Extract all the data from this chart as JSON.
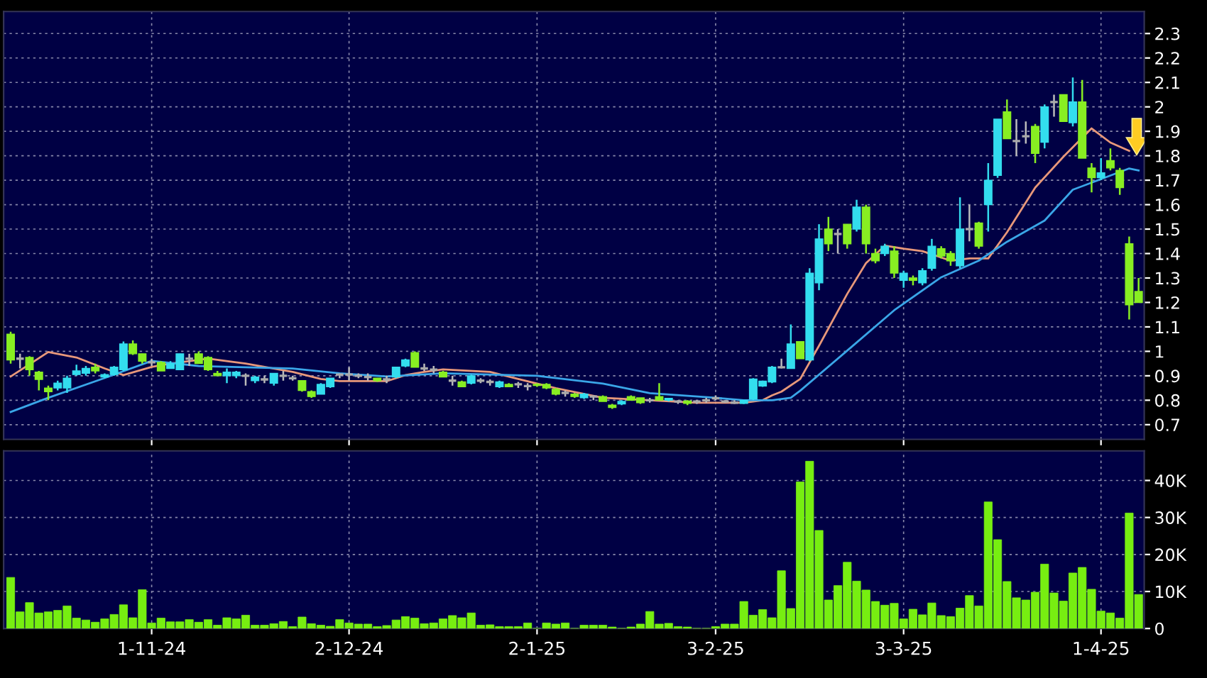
{
  "chart_data": [
    {
      "type": "candlestick",
      "categories": [
        null,
        null,
        null,
        null,
        null,
        null,
        null,
        null,
        null,
        null,
        null,
        null,
        null,
        null,
        null,
        null,
        null,
        null,
        null,
        null,
        null,
        null,
        null,
        null,
        null,
        null,
        null,
        null,
        null,
        null,
        null,
        null,
        null,
        null,
        null,
        null,
        null,
        null,
        null,
        null,
        null,
        null,
        null,
        null,
        null,
        null,
        null,
        null,
        null,
        null,
        null,
        null,
        null,
        null,
        null,
        null,
        null,
        null,
        null,
        null,
        null,
        null,
        null,
        null,
        null,
        null,
        null,
        null,
        null,
        null,
        null,
        null,
        null,
        null,
        null,
        null,
        null,
        null,
        null,
        null,
        null,
        null,
        null,
        null,
        null,
        null,
        null,
        null,
        null,
        null,
        null,
        null,
        null,
        null,
        null,
        null,
        null,
        null,
        null,
        null,
        null,
        null,
        null,
        null,
        null,
        null,
        null,
        null,
        null,
        null,
        null,
        null,
        null,
        null,
        null,
        null,
        null,
        null,
        null,
        null,
        null
      ],
      "ohlc": [
        [
          1.07,
          1.08,
          0.95,
          0.965
        ],
        [
          0.97,
          0.99,
          0.93,
          0.97
        ],
        [
          0.975,
          0.98,
          0.9,
          0.925
        ],
        [
          0.915,
          0.92,
          0.84,
          0.885
        ],
        [
          0.85,
          0.86,
          0.8,
          0.835
        ],
        [
          0.85,
          0.88,
          0.84,
          0.87
        ],
        [
          0.85,
          0.9,
          0.83,
          0.89
        ],
        [
          0.905,
          0.945,
          0.9,
          0.92
        ],
        [
          0.91,
          0.94,
          0.9,
          0.93
        ],
        [
          0.935,
          0.95,
          0.91,
          0.92
        ],
        [
          0.895,
          0.91,
          0.89,
          0.905
        ],
        [
          0.905,
          0.94,
          0.9,
          0.935
        ],
        [
          0.925,
          1.04,
          0.92,
          1.03
        ],
        [
          1.03,
          1.045,
          0.985,
          0.99
        ],
        [
          0.99,
          0.99,
          0.95,
          0.96
        ],
        [
          0.955,
          0.97,
          0.94,
          0.955
        ],
        [
          0.955,
          0.96,
          0.92,
          0.92
        ],
        [
          0.93,
          0.96,
          0.93,
          0.95
        ],
        [
          0.925,
          0.99,
          0.925,
          0.99
        ],
        [
          0.97,
          0.99,
          0.94,
          0.97
        ],
        [
          0.99,
          1.0,
          0.95,
          0.95
        ],
        [
          0.975,
          0.98,
          0.92,
          0.925
        ],
        [
          0.91,
          0.92,
          0.9,
          0.9
        ],
        [
          0.9,
          0.93,
          0.87,
          0.915
        ],
        [
          0.9,
          0.92,
          0.89,
          0.915
        ],
        [
          0.9,
          0.91,
          0.86,
          0.9
        ],
        [
          0.88,
          0.9,
          0.87,
          0.895
        ],
        [
          0.885,
          0.9,
          0.87,
          0.885
        ],
        [
          0.87,
          0.91,
          0.86,
          0.91
        ],
        [
          0.9,
          0.92,
          0.88,
          0.9
        ],
        [
          0.89,
          0.9,
          0.88,
          0.89
        ],
        [
          0.88,
          0.88,
          0.835,
          0.84
        ],
        [
          0.835,
          0.84,
          0.81,
          0.815
        ],
        [
          0.825,
          0.87,
          0.825,
          0.865
        ],
        [
          0.855,
          0.89,
          0.85,
          0.89
        ],
        [
          0.905,
          0.91,
          0.89,
          0.905
        ],
        [
          0.905,
          0.935,
          0.88,
          0.905
        ],
        [
          0.9,
          0.91,
          0.89,
          0.9
        ],
        [
          0.895,
          0.91,
          0.88,
          0.895
        ],
        [
          0.89,
          0.89,
          0.875,
          0.88
        ],
        [
          0.885,
          0.9,
          0.87,
          0.885
        ],
        [
          0.895,
          0.935,
          0.89,
          0.935
        ],
        [
          0.94,
          0.97,
          0.935,
          0.965
        ],
        [
          0.995,
          1.0,
          0.935,
          0.935
        ],
        [
          0.93,
          0.95,
          0.92,
          0.93
        ],
        [
          0.925,
          0.94,
          0.91,
          0.925
        ],
        [
          0.915,
          0.92,
          0.895,
          0.895
        ],
        [
          0.88,
          0.9,
          0.86,
          0.88
        ],
        [
          0.875,
          0.88,
          0.855,
          0.855
        ],
        [
          0.87,
          0.905,
          0.865,
          0.9
        ],
        [
          0.88,
          0.89,
          0.87,
          0.88
        ],
        [
          0.875,
          0.885,
          0.86,
          0.875
        ],
        [
          0.855,
          0.88,
          0.85,
          0.875
        ],
        [
          0.865,
          0.87,
          0.855,
          0.855
        ],
        [
          0.865,
          0.875,
          0.85,
          0.865
        ],
        [
          0.858,
          0.87,
          0.84,
          0.858
        ],
        [
          0.865,
          0.87,
          0.855,
          0.86
        ],
        [
          0.865,
          0.87,
          0.845,
          0.85
        ],
        [
          0.845,
          0.85,
          0.82,
          0.825
        ],
        [
          0.83,
          0.84,
          0.815,
          0.83
        ],
        [
          0.825,
          0.83,
          0.81,
          0.815
        ],
        [
          0.81,
          0.83,
          0.805,
          0.825
        ],
        [
          0.815,
          0.82,
          0.8,
          0.815
        ],
        [
          0.815,
          0.82,
          0.795,
          0.795
        ],
        [
          0.78,
          0.785,
          0.765,
          0.77
        ],
        [
          0.785,
          0.8,
          0.78,
          0.795
        ],
        [
          0.815,
          0.82,
          0.8,
          0.8
        ],
        [
          0.81,
          0.81,
          0.785,
          0.79
        ],
        [
          0.8,
          0.81,
          0.79,
          0.8
        ],
        [
          0.815,
          0.87,
          0.8,
          0.8
        ],
        [
          0.8,
          0.81,
          0.795,
          0.808
        ],
        [
          0.795,
          0.8,
          0.785,
          0.795
        ],
        [
          0.797,
          0.8,
          0.78,
          0.787
        ],
        [
          0.795,
          0.8,
          0.785,
          0.795
        ],
        [
          0.8,
          0.81,
          0.79,
          0.8
        ],
        [
          0.808,
          0.82,
          0.8,
          0.808
        ],
        [
          0.795,
          0.8,
          0.79,
          0.795
        ],
        [
          0.79,
          0.8,
          0.785,
          0.79
        ],
        [
          0.787,
          0.8,
          0.785,
          0.8
        ],
        [
          0.805,
          0.89,
          0.8,
          0.887
        ],
        [
          0.858,
          0.88,
          0.855,
          0.878
        ],
        [
          0.875,
          0.94,
          0.87,
          0.935
        ],
        [
          0.935,
          0.97,
          0.93,
          0.935
        ],
        [
          0.93,
          1.11,
          0.93,
          1.03
        ],
        [
          1.04,
          1.04,
          0.97,
          0.97
        ],
        [
          0.965,
          1.34,
          0.96,
          1.32
        ],
        [
          1.28,
          1.52,
          1.25,
          1.46
        ],
        [
          1.5,
          1.55,
          1.41,
          1.44
        ],
        [
          1.48,
          1.5,
          1.4,
          1.48
        ],
        [
          1.52,
          1.52,
          1.42,
          1.44
        ],
        [
          1.5,
          1.62,
          1.49,
          1.59
        ],
        [
          1.59,
          1.6,
          1.4,
          1.44
        ],
        [
          1.4,
          1.42,
          1.36,
          1.37
        ],
        [
          1.4,
          1.44,
          1.39,
          1.43
        ],
        [
          1.41,
          1.43,
          1.3,
          1.32
        ],
        [
          1.29,
          1.33,
          1.26,
          1.32
        ],
        [
          1.3,
          1.31,
          1.27,
          1.29
        ],
        [
          1.28,
          1.34,
          1.27,
          1.33
        ],
        [
          1.34,
          1.46,
          1.33,
          1.43
        ],
        [
          1.42,
          1.43,
          1.38,
          1.39
        ],
        [
          1.4,
          1.41,
          1.35,
          1.37
        ],
        [
          1.35,
          1.63,
          1.34,
          1.5
        ],
        [
          1.5,
          1.6,
          1.45,
          1.5
        ],
        [
          1.525,
          1.53,
          1.42,
          1.43
        ],
        [
          1.6,
          1.77,
          1.49,
          1.7
        ],
        [
          1.72,
          1.95,
          1.71,
          1.95
        ],
        [
          1.98,
          2.03,
          1.87,
          1.87
        ],
        [
          1.86,
          1.95,
          1.8,
          1.86
        ],
        [
          1.88,
          1.94,
          1.85,
          1.88
        ],
        [
          1.92,
          1.93,
          1.77,
          1.81
        ],
        [
          1.855,
          2.01,
          1.83,
          2.0
        ],
        [
          2.02,
          2.05,
          1.96,
          2.02
        ],
        [
          2.05,
          2.05,
          1.94,
          1.94
        ],
        [
          1.935,
          2.12,
          1.92,
          2.02
        ],
        [
          2.02,
          2.11,
          1.79,
          1.79
        ],
        [
          1.75,
          1.77,
          1.65,
          1.71
        ],
        [
          1.71,
          1.79,
          1.7,
          1.73
        ],
        [
          1.78,
          1.83,
          1.74,
          1.75
        ],
        [
          1.74,
          1.75,
          1.64,
          1.67
        ],
        [
          1.44,
          1.47,
          1.13,
          1.19
        ],
        [
          1.245,
          1.3,
          1.2,
          1.2
        ]
      ],
      "colors": [
        "#88ee22",
        "#aaaaaa",
        "#88ee22",
        "#88ee22",
        "#88ee22",
        "#33ddee",
        "#33ddee",
        "#33ddee",
        "#33ddee",
        "#88ee22",
        "#33ddee",
        "#33ddee",
        "#33ddee",
        "#88ee22",
        "#88ee22",
        "#aaaaaa",
        "#88ee22",
        "#33ddee",
        "#33ddee",
        "#aaaaaa",
        "#88ee22",
        "#88ee22",
        "#88ee22",
        "#33ddee",
        "#33ddee",
        "#aaaaaa",
        "#33ddee",
        "#aaaaaa",
        "#33ddee",
        "#aaaaaa",
        "#aaaaaa",
        "#88ee22",
        "#88ee22",
        "#33ddee",
        "#33ddee",
        "#aaaaaa",
        "#aaaaaa",
        "#aaaaaa",
        "#aaaaaa",
        "#88ee22",
        "#aaaaaa",
        "#33ddee",
        "#33ddee",
        "#88ee22",
        "#aaaaaa",
        "#aaaaaa",
        "#88ee22",
        "#aaaaaa",
        "#88ee22",
        "#33ddee",
        "#aaaaaa",
        "#aaaaaa",
        "#33ddee",
        "#88ee22",
        "#aaaaaa",
        "#aaaaaa",
        "#88ee22",
        "#88ee22",
        "#88ee22",
        "#aaaaaa",
        "#88ee22",
        "#33ddee",
        "#aaaaaa",
        "#88ee22",
        "#88ee22",
        "#33ddee",
        "#88ee22",
        "#88ee22",
        "#aaaaaa",
        "#88ee22",
        "#33ddee",
        "#aaaaaa",
        "#88ee22",
        "#aaaaaa",
        "#aaaaaa",
        "#aaaaaa",
        "#aaaaaa",
        "#aaaaaa",
        "#33ddee",
        "#33ddee",
        "#33ddee",
        "#33ddee",
        "#aaaaaa",
        "#33ddee",
        "#88ee22",
        "#33ddee",
        "#33ddee",
        "#88ee22",
        "#aaaaaa",
        "#88ee22",
        "#33ddee",
        "#88ee22",
        "#88ee22",
        "#33ddee",
        "#88ee22",
        "#33ddee",
        "#88ee22",
        "#33ddee",
        "#33ddee",
        "#88ee22",
        "#88ee22",
        "#33ddee",
        "#aaaaaa",
        "#88ee22",
        "#33ddee",
        "#33ddee",
        "#88ee22",
        "#aaaaaa",
        "#aaaaaa",
        "#88ee22",
        "#33ddee",
        "#aaaaaa",
        "#88ee22",
        "#33ddee",
        "#88ee22",
        "#88ee22",
        "#33ddee",
        "#88ee22",
        "#88ee22",
        "#88ee22",
        "#88ee22"
      ],
      "series": [
        {
          "type": "line",
          "color": "#e8987a",
          "values": [
            0.897,
            null,
            null,
            null,
            0.997,
            null,
            null,
            0.975,
            null,
            null,
            0.93,
            null,
            0.903,
            null,
            null,
            0.936,
            null,
            0.95,
            null,
            null,
            null,
            0.97,
            null,
            null,
            null,
            0.95,
            null,
            null,
            null,
            null,
            0.916,
            null,
            null,
            0.887,
            null,
            0.878,
            null,
            null,
            null,
            null,
            0.878,
            null,
            0.903,
            null,
            0.916,
            null,
            0.926,
            null,
            null,
            null,
            null,
            0.916,
            null,
            null,
            0.887,
            null,
            null,
            null,
            0.849,
            null,
            null,
            null,
            null,
            0.81,
            null,
            null,
            null,
            null,
            0.8,
            null,
            null,
            null,
            null,
            0.79,
            null,
            null,
            null,
            null,
            0.79,
            null,
            0.8,
            0.82,
            0.835,
            null,
            0.887,
            null,
            1.023,
            null,
            null,
            1.235,
            null,
            1.361,
            null,
            1.432,
            null,
            1.42,
            null,
            1.41,
            null,
            null,
            1.371,
            null,
            1.38,
            null,
            1.38,
            null,
            1.487,
            null,
            null,
            1.67,
            null,
            null,
            1.796,
            null,
            null,
            1.912,
            null,
            1.854,
            null,
            1.82,
            null
          ]
        },
        {
          "type": "line",
          "color": "#3aa6e8",
          "values": [
            0.752,
            null,
            null,
            null,
            0.81,
            null,
            null,
            null,
            null,
            null,
            0.891,
            null,
            null,
            null,
            null,
            0.961,
            null,
            null,
            null,
            null,
            0.94,
            null,
            null,
            null,
            null,
            null,
            null,
            null,
            null,
            null,
            0.93,
            null,
            null,
            null,
            null,
            0.91,
            null,
            null,
            null,
            null,
            0.897,
            null,
            null,
            null,
            null,
            null,
            0.91,
            null,
            null,
            null,
            null,
            null,
            null,
            null,
            null,
            null,
            0.9,
            null,
            null,
            null,
            null,
            null,
            null,
            0.868,
            null,
            null,
            null,
            null,
            0.829,
            null,
            null,
            null,
            null,
            null,
            null,
            0.81,
            null,
            null,
            0.8,
            null,
            null,
            0.8,
            null,
            0.81,
            0.839,
            null,
            null,
            null,
            null,
            1.003,
            null,
            null,
            null,
            null,
            1.168,
            null,
            null,
            null,
            null,
            1.303,
            null,
            null,
            null,
            1.371,
            null,
            null,
            1.448,
            null,
            null,
            null,
            1.535,
            null,
            null,
            1.661,
            null,
            null,
            null,
            1.719,
            null,
            1.748,
            1.74
          ]
        }
      ],
      "ylim": [
        0.64,
        2.39
      ],
      "yticks": [
        0.7,
        0.8,
        0.9,
        1,
        1.1,
        1.2,
        1.3,
        1.4,
        1.5,
        1.6,
        1.7,
        1.8,
        1.9,
        2,
        2.1,
        2.2,
        2.3
      ],
      "grid": true,
      "tick_labels": "y"
    },
    {
      "type": "bar",
      "categories": [
        null,
        null,
        null,
        null,
        null,
        null,
        null,
        null,
        null,
        null,
        null,
        null,
        null,
        null,
        null,
        "1-11-24",
        null,
        null,
        null,
        null,
        null,
        null,
        null,
        null,
        null,
        null,
        null,
        null,
        null,
        null,
        null,
        null,
        null,
        null,
        null,
        null,
        "2-12-24",
        null,
        null,
        null,
        null,
        null,
        null,
        null,
        null,
        null,
        null,
        null,
        null,
        null,
        null,
        null,
        null,
        null,
        null,
        null,
        "2-1-25",
        null,
        null,
        null,
        null,
        null,
        null,
        null,
        null,
        null,
        null,
        null,
        null,
        null,
        null,
        null,
        null,
        null,
        null,
        "3-2-25",
        null,
        null,
        null,
        null,
        null,
        null,
        null,
        null,
        null,
        null,
        null,
        null,
        null,
        null,
        null,
        null,
        null,
        null,
        null,
        "3-3-25",
        null,
        null,
        null,
        null,
        null,
        null,
        null,
        null,
        null,
        null,
        null,
        null,
        null,
        null,
        null,
        null,
        null,
        null,
        null,
        null,
        "1-4-25",
        null,
        null,
        null,
        null
      ],
      "values": [
        13800,
        4500,
        7000,
        4200,
        4500,
        4900,
        6100,
        2800,
        2300,
        1700,
        2600,
        3800,
        6400,
        2900,
        10500,
        1500,
        2800,
        1800,
        1800,
        2400,
        1700,
        2400,
        900,
        2900,
        2600,
        3600,
        900,
        900,
        1300,
        1900,
        500,
        3100,
        1300,
        900,
        600,
        2400,
        1500,
        1200,
        1200,
        500,
        800,
        2300,
        3200,
        2800,
        1300,
        1500,
        2600,
        3500,
        2900,
        4200,
        900,
        1000,
        500,
        500,
        500,
        1500,
        0,
        1500,
        1200,
        1500,
        0,
        900,
        900,
        900,
        400,
        0,
        400,
        1200,
        4600,
        1200,
        1400,
        500,
        400,
        0,
        0,
        500,
        1200,
        1200,
        7300,
        3600,
        5100,
        2900,
        15600,
        5400,
        39600,
        45200,
        26500,
        7700,
        11600,
        17900,
        12800,
        10400,
        7300,
        6300,
        6800,
        2600,
        5200,
        3700,
        6900,
        3500,
        3200,
        5500,
        8900,
        6100,
        34200,
        24000,
        12700,
        8300,
        7700,
        9800,
        17400,
        9600,
        7400,
        15000,
        16500,
        10600,
        4700,
        4200,
        2800,
        31200,
        9200
      ],
      "color": "#77ee11",
      "ylim": [
        0,
        48000
      ],
      "yticks": [
        0,
        {
          "value": 10000,
          "label": "10K"
        },
        {
          "value": 20000,
          "label": "20K"
        },
        {
          "value": 30000,
          "label": "30K"
        },
        {
          "value": 40000,
          "label": "40K"
        }
      ],
      "grid": true
    }
  ]
}
